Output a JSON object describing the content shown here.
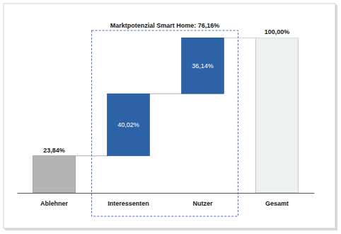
{
  "chart_data": {
    "type": "waterfall",
    "annotation": "Marktpotenzial Smart Home: 76,16%",
    "categories": [
      "Ablehner",
      "Interessenten",
      "Nutzer",
      "Gesamt"
    ],
    "values": [
      23.84,
      40.02,
      36.14,
      100.0
    ],
    "value_labels": [
      "23,84%",
      "40,02%",
      "36,14%",
      "100,00%"
    ],
    "colors": [
      "#b4b4b4",
      "#2d62a6",
      "#2d62a6",
      "#eef1f1"
    ],
    "ylim": [
      0,
      100
    ],
    "data_labels": true,
    "tick_labels": "x"
  }
}
